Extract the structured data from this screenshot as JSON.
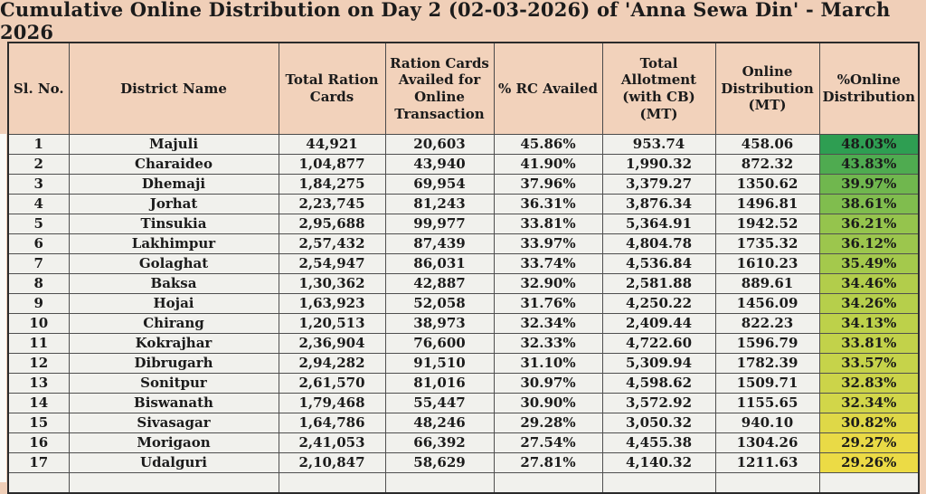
{
  "title": "Cumulative Online Distribution on Day 2 (02-03-2026) of 'Anna Sewa Din' - March 2026",
  "colors": {
    "page_bg": "#f0cfb8",
    "header_bg": "#f2d2bb",
    "row_bg": "#f1f1ed",
    "border": "#4f4f4f",
    "text": "#1b1b1b",
    "scale_top_green": "#2e9e52",
    "scale_bottom_yellow": "#ecdb45"
  },
  "table": {
    "fields": [
      "sl",
      "district",
      "total_rc",
      "rc_availed_online",
      "pct_rc_availed",
      "total_allotment_mt",
      "online_distribution_mt",
      "pct_online_distribution"
    ],
    "columns": [
      "Sl. No.",
      "District Name",
      "Total Ration\nCards",
      "Ration Cards\nAvailed for\nOnline\nTransaction",
      "% RC Availed",
      "Total\nAllotment\n(with CB)\n(MT)",
      "Online\nDistribution\n(MT)",
      "%Online\nDistribution"
    ],
    "rows": [
      {
        "sl": "1",
        "district": "Majuli",
        "total_rc": "44,921",
        "rc_availed_online": "20,603",
        "pct_rc_availed": "45.86%",
        "total_allotment_mt": "953.74",
        "online_distribution_mt": "458.06",
        "pct_online_distribution": "48.03%",
        "pct_color": "#2e9e52"
      },
      {
        "sl": "2",
        "district": "Charaideo",
        "total_rc": "1,04,877",
        "rc_availed_online": "43,940",
        "pct_rc_availed": "41.90%",
        "total_allotment_mt": "1,990.32",
        "online_distribution_mt": "872.32",
        "pct_online_distribution": "43.83%",
        "pct_color": "#4fab50"
      },
      {
        "sl": "3",
        "district": "Dhemaji",
        "total_rc": "1,84,275",
        "rc_availed_online": "69,954",
        "pct_rc_availed": "37.96%",
        "total_allotment_mt": "3,379.27",
        "online_distribution_mt": "1350.62",
        "pct_online_distribution": "39.97%",
        "pct_color": "#70b74e"
      },
      {
        "sl": "4",
        "district": "Jorhat",
        "total_rc": "2,23,745",
        "rc_availed_online": "81,243",
        "pct_rc_availed": "36.31%",
        "total_allotment_mt": "3,876.34",
        "online_distribution_mt": "1496.81",
        "pct_online_distribution": "38.61%",
        "pct_color": "#80bd4e"
      },
      {
        "sl": "5",
        "district": "Tinsukia",
        "total_rc": "2,95,688",
        "rc_availed_online": "99,977",
        "pct_rc_availed": "33.81%",
        "total_allotment_mt": "5,364.91",
        "online_distribution_mt": "1942.52",
        "pct_online_distribution": "36.21%",
        "pct_color": "#95c44d"
      },
      {
        "sl": "6",
        "district": "Lakhimpur",
        "total_rc": "2,57,432",
        "rc_availed_online": "87,439",
        "pct_rc_availed": "33.97%",
        "total_allotment_mt": "4,804.78",
        "online_distribution_mt": "1735.32",
        "pct_online_distribution": "36.12%",
        "pct_color": "#9cc64d"
      },
      {
        "sl": "7",
        "district": "Golaghat",
        "total_rc": "2,54,947",
        "rc_availed_online": "86,031",
        "pct_rc_availed": "33.74%",
        "total_allotment_mt": "4,536.84",
        "online_distribution_mt": "1610.23",
        "pct_online_distribution": "35.49%",
        "pct_color": "#a4c94c"
      },
      {
        "sl": "8",
        "district": "Baksa",
        "total_rc": "1,30,362",
        "rc_availed_online": "42,887",
        "pct_rc_availed": "32.90%",
        "total_allotment_mt": "2,581.88",
        "online_distribution_mt": "889.61",
        "pct_online_distribution": "34.46%",
        "pct_color": "#b2cd4b"
      },
      {
        "sl": "9",
        "district": "Hojai",
        "total_rc": "1,63,923",
        "rc_availed_online": "52,058",
        "pct_rc_availed": "31.76%",
        "total_allotment_mt": "4,250.22",
        "online_distribution_mt": "1456.09",
        "pct_online_distribution": "34.26%",
        "pct_color": "#b6cf4b"
      },
      {
        "sl": "10",
        "district": "Chirang",
        "total_rc": "1,20,513",
        "rc_availed_online": "38,973",
        "pct_rc_availed": "32.34%",
        "total_allotment_mt": "2,409.44",
        "online_distribution_mt": "822.23",
        "pct_online_distribution": "34.13%",
        "pct_color": "#bdd14a"
      },
      {
        "sl": "11",
        "district": "Kokrajhar",
        "total_rc": "2,36,904",
        "rc_availed_online": "76,600",
        "pct_rc_availed": "32.33%",
        "total_allotment_mt": "4,722.60",
        "online_distribution_mt": "1596.79",
        "pct_online_distribution": "33.81%",
        "pct_color": "#c2d24a"
      },
      {
        "sl": "12",
        "district": "Dibrugarh",
        "total_rc": "2,94,282",
        "rc_availed_online": "91,510",
        "pct_rc_availed": "31.10%",
        "total_allotment_mt": "5,309.94",
        "online_distribution_mt": "1782.39",
        "pct_online_distribution": "33.57%",
        "pct_color": "#c6d34a"
      },
      {
        "sl": "13",
        "district": "Sonitpur",
        "total_rc": "2,61,570",
        "rc_availed_online": "81,016",
        "pct_rc_availed": "30.97%",
        "total_allotment_mt": "4,598.62",
        "online_distribution_mt": "1509.71",
        "pct_online_distribution": "32.83%",
        "pct_color": "#ccd449"
      },
      {
        "sl": "14",
        "district": "Biswanath",
        "total_rc": "1,79,468",
        "rc_availed_online": "55,447",
        "pct_rc_availed": "30.90%",
        "total_allotment_mt": "3,572.92",
        "online_distribution_mt": "1155.65",
        "pct_online_distribution": "32.34%",
        "pct_color": "#d2d649"
      },
      {
        "sl": "15",
        "district": "Sivasagar",
        "total_rc": "1,64,786",
        "rc_availed_online": "48,246",
        "pct_rc_availed": "29.28%",
        "total_allotment_mt": "3,050.32",
        "online_distribution_mt": "940.10",
        "pct_online_distribution": "30.82%",
        "pct_color": "#dfd847"
      },
      {
        "sl": "16",
        "district": "Morigaon",
        "total_rc": "2,41,053",
        "rc_availed_online": "66,392",
        "pct_rc_availed": "27.54%",
        "total_allotment_mt": "4,455.38",
        "online_distribution_mt": "1304.26",
        "pct_online_distribution": "29.27%",
        "pct_color": "#e9da46"
      },
      {
        "sl": "17",
        "district": "Udalguri",
        "total_rc": "2,10,847",
        "rc_availed_online": "58,629",
        "pct_rc_availed": "27.81%",
        "total_allotment_mt": "4,140.32",
        "online_distribution_mt": "1211.63",
        "pct_online_distribution": "29.26%",
        "pct_color": "#ecdb45"
      }
    ]
  }
}
